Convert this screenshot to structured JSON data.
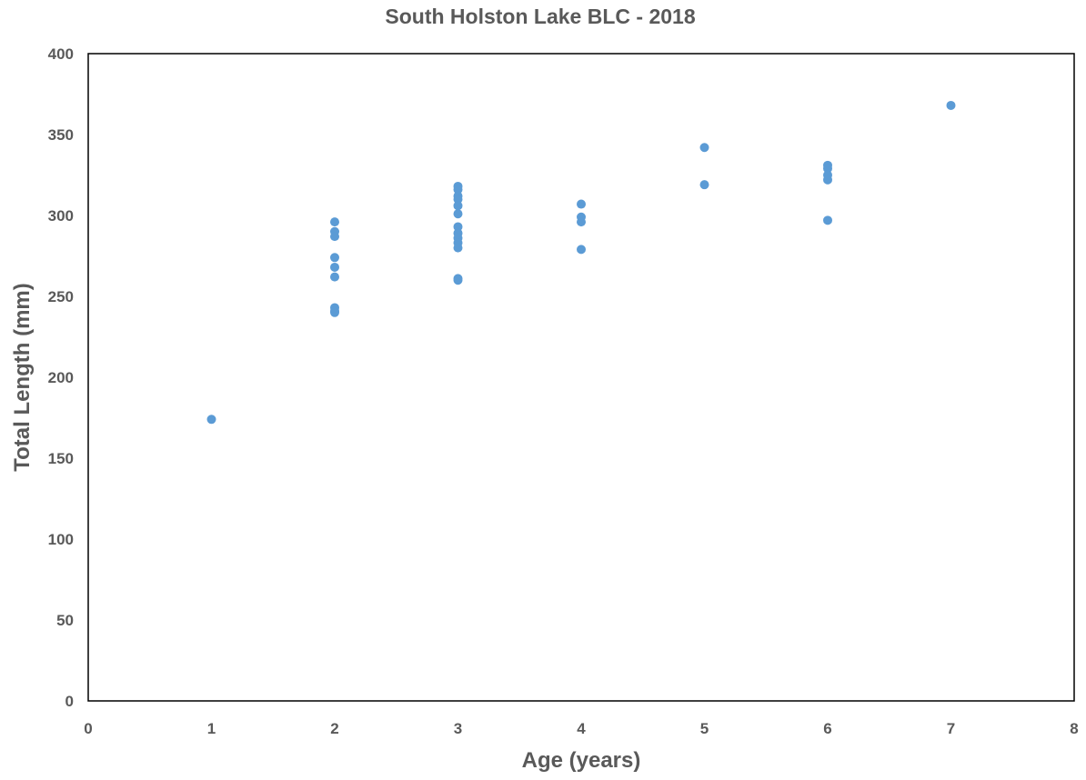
{
  "chart_data": {
    "type": "scatter",
    "title": "South Holston Lake BLC - 2018",
    "xlabel": "Age (years)",
    "ylabel": "Total Length (mm)",
    "xlim": [
      0,
      8
    ],
    "ylim": [
      0,
      400
    ],
    "x_ticks": [
      0,
      1,
      2,
      3,
      4,
      5,
      6,
      7,
      8
    ],
    "y_ticks": [
      0,
      50,
      100,
      150,
      200,
      250,
      300,
      350,
      400
    ],
    "grid": false,
    "legend": "none",
    "series": [
      {
        "color": "#5B9BD5",
        "points": [
          [
            1,
            174
          ],
          [
            2,
            296
          ],
          [
            2,
            290
          ],
          [
            2,
            287
          ],
          [
            2,
            274
          ],
          [
            2,
            268
          ],
          [
            2,
            262
          ],
          [
            2,
            243
          ],
          [
            2,
            241
          ],
          [
            2,
            240
          ],
          [
            3,
            318
          ],
          [
            3,
            316
          ],
          [
            3,
            312
          ],
          [
            3,
            310
          ],
          [
            3,
            306
          ],
          [
            3,
            301
          ],
          [
            3,
            293
          ],
          [
            3,
            289
          ],
          [
            3,
            286
          ],
          [
            3,
            283
          ],
          [
            3,
            280
          ],
          [
            3,
            261
          ],
          [
            3,
            260
          ],
          [
            4,
            307
          ],
          [
            4,
            299
          ],
          [
            4,
            296
          ],
          [
            4,
            279
          ],
          [
            5,
            342
          ],
          [
            5,
            319
          ],
          [
            6,
            331
          ],
          [
            6,
            329
          ],
          [
            6,
            325
          ],
          [
            6,
            322
          ],
          [
            6,
            297
          ],
          [
            7,
            368
          ]
        ]
      }
    ]
  }
}
